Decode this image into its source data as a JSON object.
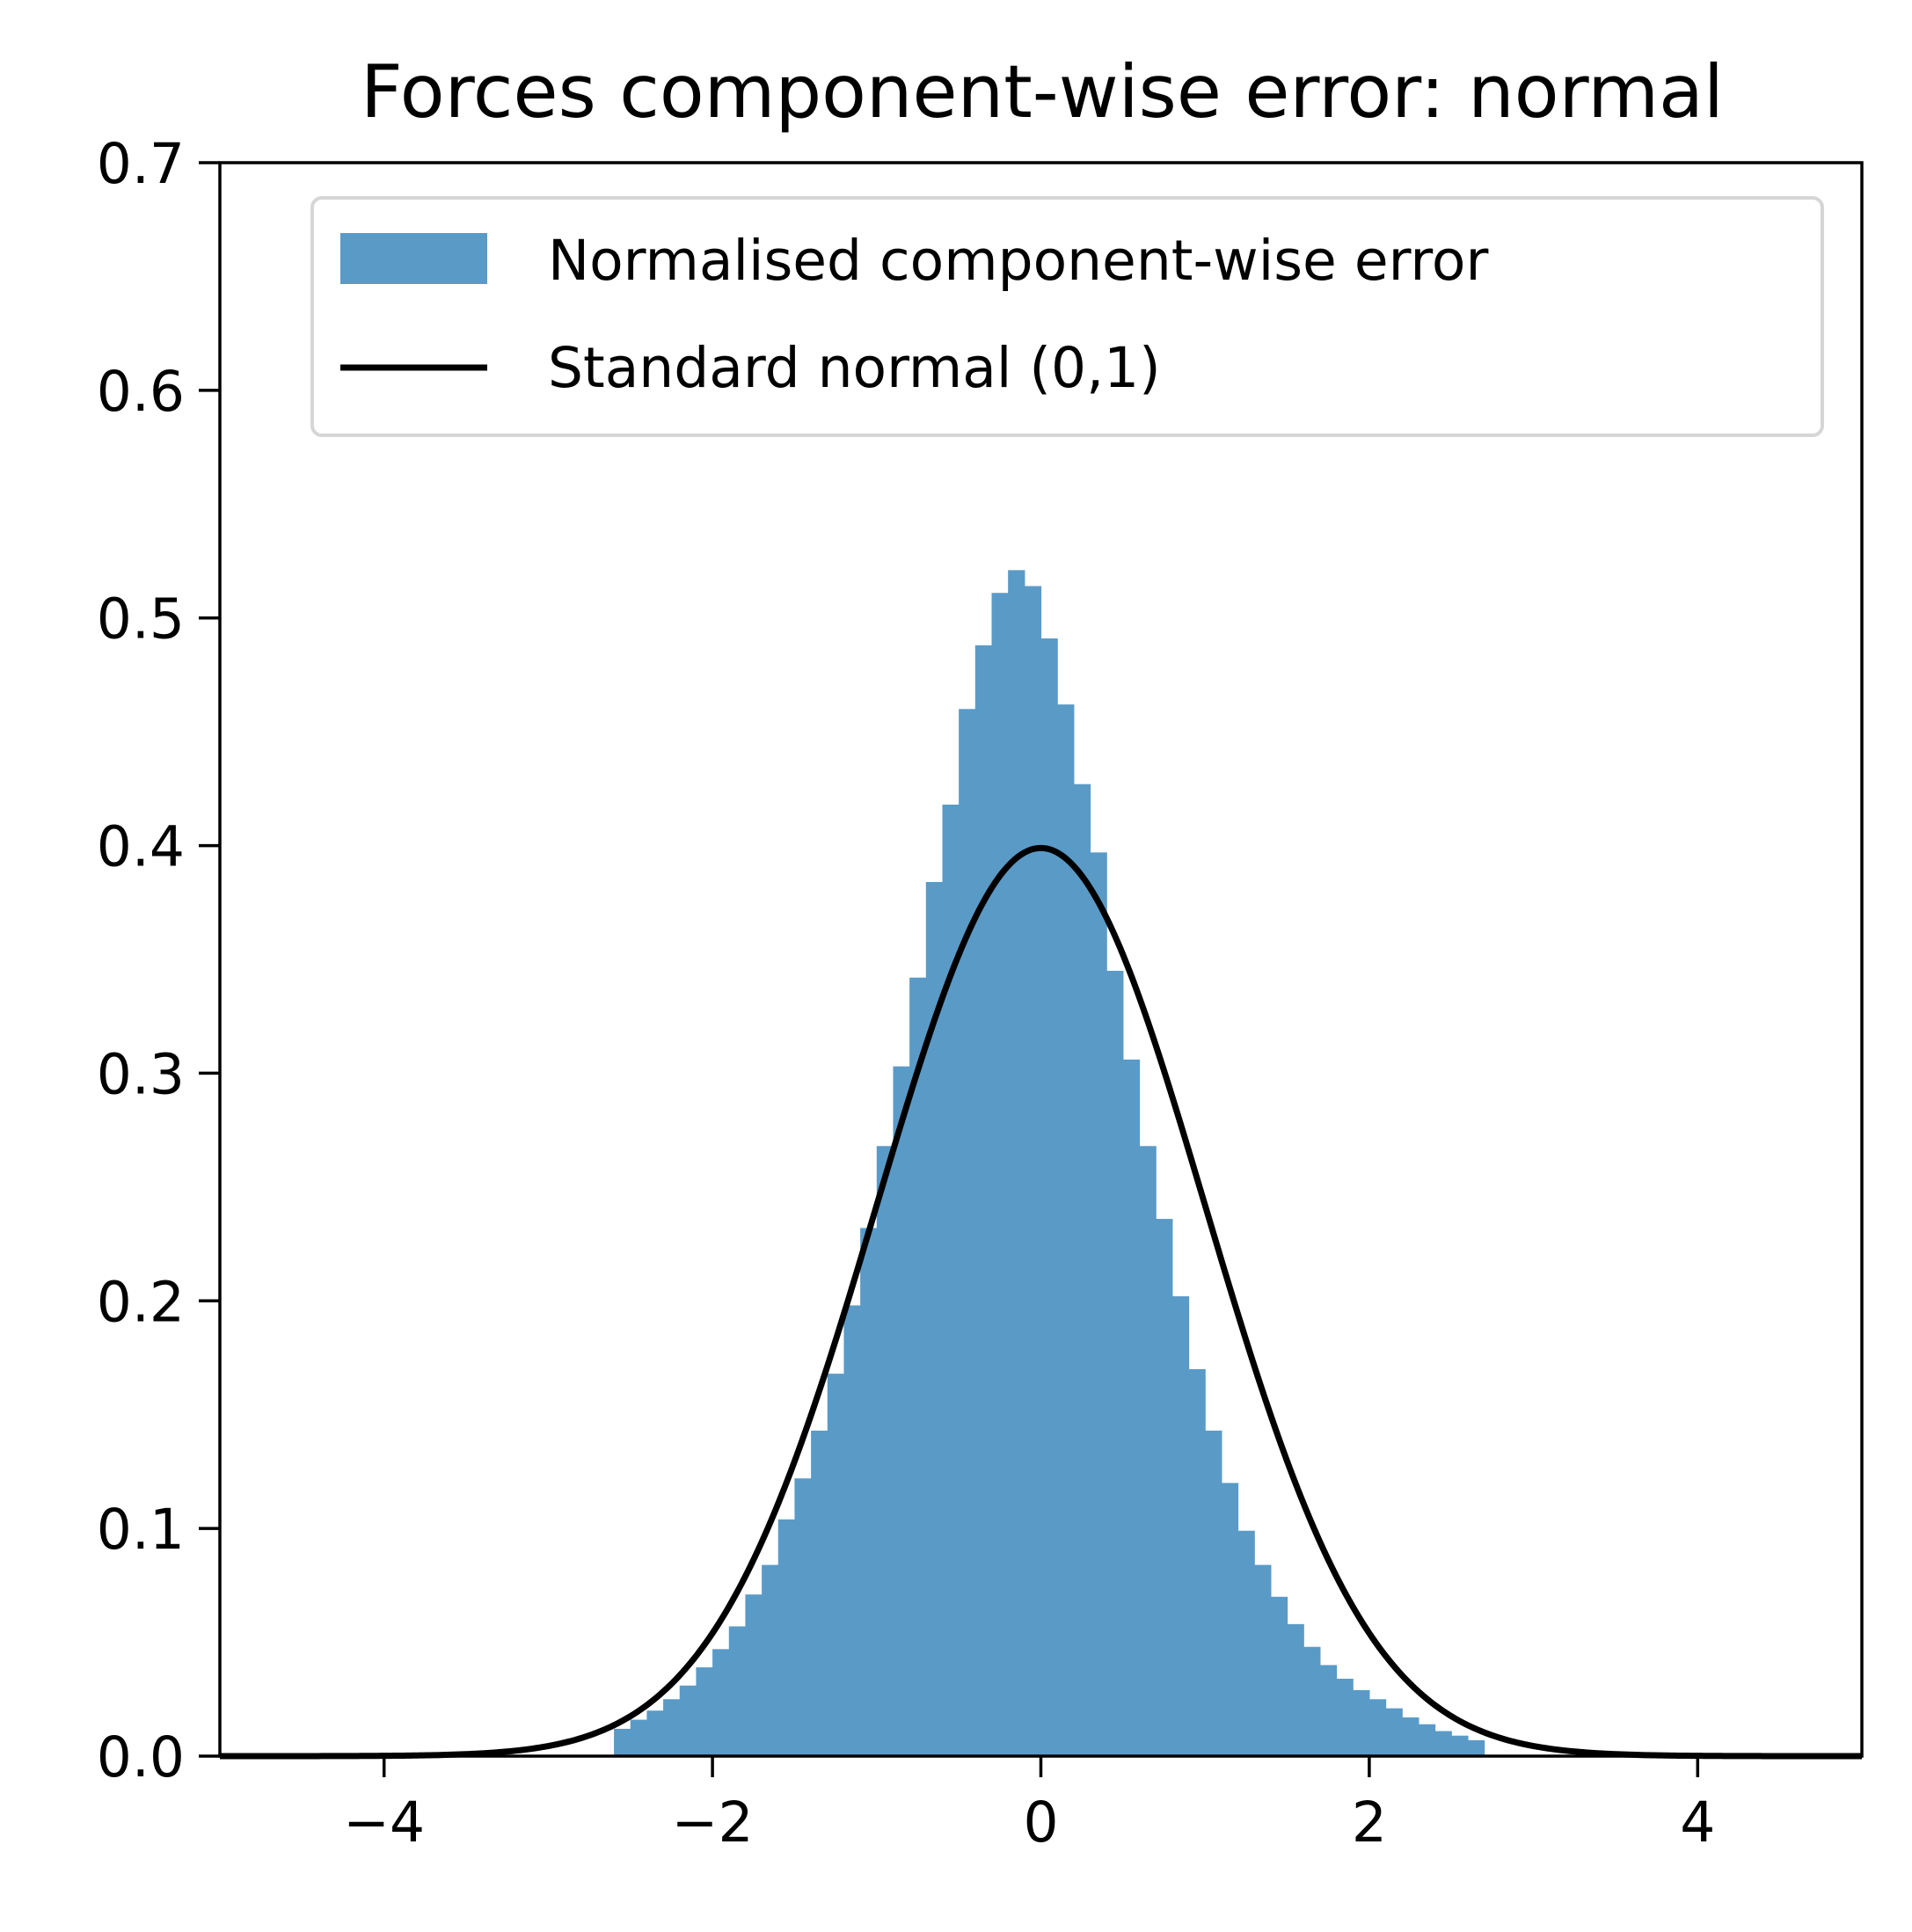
{
  "chart_data": {
    "type": "bar",
    "title": "Forces component-wise error: normal",
    "xlabel": "",
    "ylabel": "",
    "xlim": [
      -5,
      5
    ],
    "ylim": [
      0,
      0.7
    ],
    "x_ticks": [
      -4,
      -2,
      0,
      2,
      4
    ],
    "x_tick_labels": [
      "−4",
      "−2",
      "0",
      "2",
      "4"
    ],
    "y_ticks": [
      0.0,
      0.1,
      0.2,
      0.3,
      0.4,
      0.5,
      0.6,
      0.7
    ],
    "y_tick_labels": [
      "0.0",
      "0.1",
      "0.2",
      "0.3",
      "0.4",
      "0.5",
      "0.6",
      "0.7"
    ],
    "grid": false,
    "legend_position": "top-right",
    "colors": {
      "histogram": "#5a9ac7",
      "curve": "#000000",
      "legend_border": "#d6d6d6"
    },
    "series": [
      {
        "name": "Normalised component-wise error",
        "kind": "histogram",
        "bin_width": 0.1,
        "bins": [
          [
            -2.6,
            0.012
          ],
          [
            -2.5,
            0.016
          ],
          [
            -2.4,
            0.02
          ],
          [
            -2.3,
            0.025
          ],
          [
            -2.2,
            0.031
          ],
          [
            -2.1,
            0.039
          ],
          [
            -2.0,
            0.047
          ],
          [
            -1.9,
            0.057
          ],
          [
            -1.8,
            0.071
          ],
          [
            -1.7,
            0.084
          ],
          [
            -1.6,
            0.104
          ],
          [
            -1.5,
            0.122
          ],
          [
            -1.4,
            0.143
          ],
          [
            -1.3,
            0.168
          ],
          [
            -1.2,
            0.198
          ],
          [
            -1.1,
            0.232
          ],
          [
            -1.0,
            0.268
          ],
          [
            -0.9,
            0.303
          ],
          [
            -0.8,
            0.342
          ],
          [
            -0.7,
            0.384
          ],
          [
            -0.6,
            0.418
          ],
          [
            -0.5,
            0.46
          ],
          [
            -0.4,
            0.488
          ],
          [
            -0.3,
            0.511
          ],
          [
            -0.2,
            0.521
          ],
          [
            -0.1,
            0.514
          ],
          [
            0.0,
            0.491
          ],
          [
            0.1,
            0.462
          ],
          [
            0.2,
            0.427
          ],
          [
            0.3,
            0.397
          ],
          [
            0.4,
            0.345
          ],
          [
            0.5,
            0.306
          ],
          [
            0.6,
            0.268
          ],
          [
            0.7,
            0.236
          ],
          [
            0.8,
            0.202
          ],
          [
            0.9,
            0.17
          ],
          [
            1.0,
            0.143
          ],
          [
            1.1,
            0.12
          ],
          [
            1.2,
            0.099
          ],
          [
            1.3,
            0.084
          ],
          [
            1.4,
            0.07
          ],
          [
            1.5,
            0.058
          ],
          [
            1.6,
            0.048
          ],
          [
            1.7,
            0.04
          ],
          [
            1.8,
            0.034
          ],
          [
            1.9,
            0.029
          ],
          [
            2.0,
            0.025
          ],
          [
            2.1,
            0.021
          ],
          [
            2.2,
            0.017
          ],
          [
            2.3,
            0.014
          ],
          [
            2.4,
            0.011
          ],
          [
            2.5,
            0.009
          ],
          [
            2.6,
            0.007
          ]
        ]
      },
      {
        "name": "Standard normal (0,1)",
        "kind": "line",
        "function": "standard normal pdf",
        "mean": 0,
        "std": 1,
        "peak": 0.399
      }
    ]
  }
}
